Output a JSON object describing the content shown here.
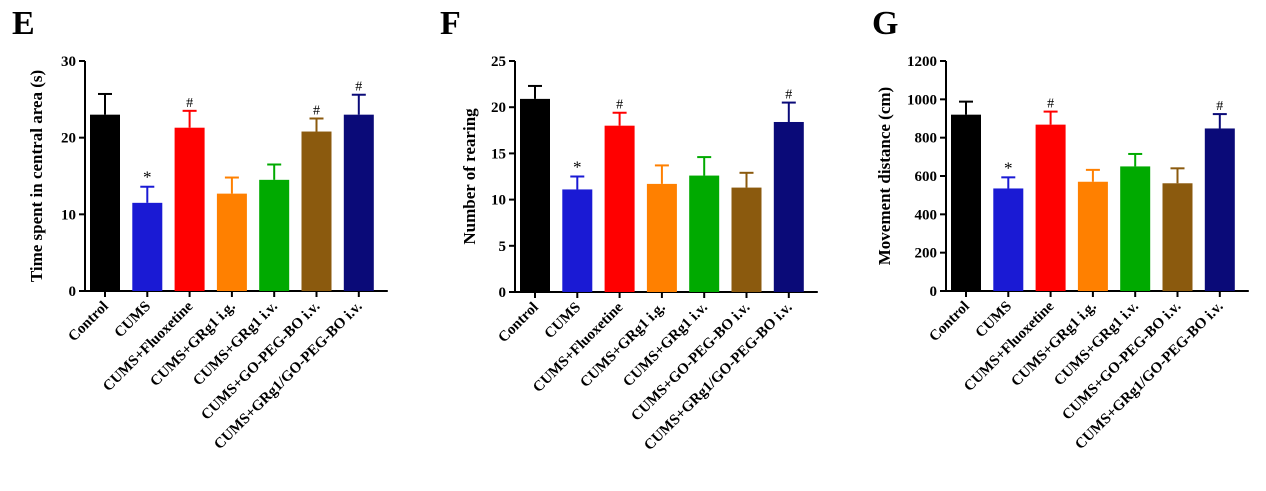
{
  "chart_data": [
    {
      "type": "bar",
      "panel": "E",
      "ylabel": "Time spent in central area (s)",
      "ylim": [
        0,
        30
      ],
      "yticks": [
        0,
        10,
        20,
        30
      ],
      "categories": [
        "Control",
        "CUMS",
        "CUMS+Fluoxetine",
        "CUMS+GRg1 i.g.",
        "CUMS+GRg1 i.v.",
        "CUMS+GO-PEG-BO i.v.",
        "CUMS+GRg1/GO-PEG-BO i.v."
      ],
      "values": [
        23.0,
        11.5,
        21.3,
        12.7,
        14.5,
        20.8,
        23.0
      ],
      "errors": [
        2.7,
        2.1,
        2.2,
        2.1,
        2.0,
        1.7,
        2.6
      ],
      "colors": [
        "#000000",
        "#1a1ad4",
        "#ff0000",
        "#ff8000",
        "#00aa00",
        "#8b5a0e",
        "#0a0a78"
      ],
      "annotations": [
        "",
        "*",
        "#",
        "",
        "",
        "#",
        "#"
      ]
    },
    {
      "type": "bar",
      "panel": "F",
      "ylabel": "Number of rearing",
      "ylim": [
        0,
        25
      ],
      "yticks": [
        0,
        5,
        10,
        15,
        20,
        25
      ],
      "categories": [
        "Control",
        "CUMS",
        "CUMS+Fluoxetine",
        "CUMS+GRg1 i.g.",
        "CUMS+GRg1 i.v.",
        "CUMS+GO-PEG-BO i.v.",
        "CUMS+GRg1/GO-PEG-BO i.v."
      ],
      "values": [
        20.9,
        11.1,
        18.0,
        11.7,
        12.6,
        11.3,
        18.4
      ],
      "errors": [
        1.4,
        1.4,
        1.4,
        2.0,
        2.0,
        1.6,
        2.1
      ],
      "colors": [
        "#000000",
        "#1a1ad4",
        "#ff0000",
        "#ff8000",
        "#00aa00",
        "#8b5a0e",
        "#0a0a78"
      ],
      "annotations": [
        "",
        "*",
        "#",
        "",
        "",
        "",
        "#"
      ]
    },
    {
      "type": "bar",
      "panel": "G",
      "ylabel": "Movement distance (cm)",
      "ylim": [
        0,
        1200
      ],
      "yticks": [
        0,
        200,
        400,
        600,
        800,
        1000,
        1200
      ],
      "categories": [
        "Control",
        "CUMS",
        "CUMS+Fluoxetine",
        "CUMS+GRg1 i.g.",
        "CUMS+GRg1 i.v.",
        "CUMS+GO-PEG-BO i.v.",
        "CUMS+GRg1/GO-PEG-BO i.v."
      ],
      "values": [
        920,
        535,
        868,
        570,
        650,
        562,
        848
      ],
      "errors": [
        68,
        58,
        68,
        62,
        65,
        78,
        75
      ],
      "colors": [
        "#000000",
        "#1a1ad4",
        "#ff0000",
        "#ff8000",
        "#00aa00",
        "#8b5a0e",
        "#0a0a78"
      ],
      "annotations": [
        "",
        "*",
        "#",
        "",
        "",
        "",
        "#"
      ]
    }
  ]
}
